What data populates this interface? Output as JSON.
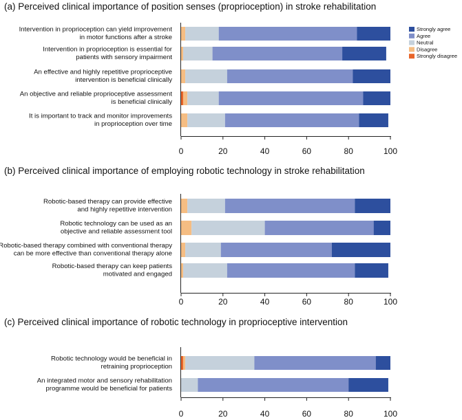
{
  "colors": {
    "Strongly agree": "#2d4f9e",
    "Agree": "#7f8fc9",
    "Neutral": "#c5d1dc",
    "Disagree": "#f5bd83",
    "Strongly disagree": "#e8652a"
  },
  "chart_data": [
    {
      "type": "bar",
      "orientation": "horizontal",
      "stacked": true,
      "title": "(a)  Perceived clinical importance of position senses (proprioception) in stroke rehabilitation",
      "xlim": [
        0,
        100
      ],
      "xticks": [
        0,
        20,
        40,
        60,
        80,
        100
      ],
      "legend": {
        "position": "top-right",
        "order": [
          "Strongly agree",
          "Agree",
          "Neutral",
          "Disagree",
          "Strongly disagree"
        ]
      },
      "categories": [
        [
          "Intervention in proprioception can yield improvement",
          "in motor functions after a stroke"
        ],
        [
          "Intervention in proprioception is essential for",
          "patients with sensory impairment"
        ],
        [
          "An effective and highly repetitive proprioceptive",
          "intervention is beneficial clinically"
        ],
        [
          "An objective and reliable proprioceptive assessment",
          "is beneficial clinically"
        ],
        [
          "It is important to track and monitor improvements",
          "in proprioception over time"
        ]
      ],
      "series": [
        {
          "name": "Strongly disagree",
          "values": [
            0,
            0,
            0,
            1,
            0
          ]
        },
        {
          "name": "Disagree",
          "values": [
            2,
            1,
            2,
            2,
            3
          ]
        },
        {
          "name": "Neutral",
          "values": [
            16,
            14,
            20,
            15,
            18
          ]
        },
        {
          "name": "Agree",
          "values": [
            66,
            62,
            60,
            69,
            64
          ]
        },
        {
          "name": "Strongly agree",
          "values": [
            16,
            21,
            18,
            13,
            14
          ]
        }
      ]
    },
    {
      "type": "bar",
      "orientation": "horizontal",
      "stacked": true,
      "title": "(b)  Perceived clinical importance of employing robotic technology in stroke rehabilitation",
      "xlim": [
        0,
        100
      ],
      "xticks": [
        0,
        20,
        40,
        60,
        80,
        100
      ],
      "categories": [
        [
          "Robotic-based therapy can provide effective",
          "and highly repetitive intervention"
        ],
        [
          "Robotic technology can be used as an",
          "objective and reliable assessment tool"
        ],
        [
          "Robotic-based therapy combined with conventional therapy",
          "can be more effective than conventional therapy alone"
        ],
        [
          "Robotic-based therapy can keep patients",
          "motivated and engaged"
        ]
      ],
      "series": [
        {
          "name": "Strongly disagree",
          "values": [
            0,
            0,
            0,
            0
          ]
        },
        {
          "name": "Disagree",
          "values": [
            3,
            5,
            2,
            1
          ]
        },
        {
          "name": "Neutral",
          "values": [
            18,
            35,
            17,
            21
          ]
        },
        {
          "name": "Agree",
          "values": [
            62,
            52,
            53,
            61
          ]
        },
        {
          "name": "Strongly agree",
          "values": [
            17,
            8,
            28,
            16
          ]
        }
      ]
    },
    {
      "type": "bar",
      "orientation": "horizontal",
      "stacked": true,
      "title": "(c)  Perceived clinical importance of robotic technology in proprioceptive intervention",
      "xlim": [
        0,
        100
      ],
      "xticks": [
        0,
        20,
        40,
        60,
        80,
        100
      ],
      "categories": [
        [
          "Robotic technology would be beneficial in",
          "retraining proprioception"
        ],
        [
          "An integrated motor and sensory rehabilitation",
          "programme would be beneficial for patients"
        ]
      ],
      "series": [
        {
          "name": "Strongly disagree",
          "values": [
            1,
            0
          ]
        },
        {
          "name": "Disagree",
          "values": [
            1,
            0
          ]
        },
        {
          "name": "Neutral",
          "values": [
            33,
            8
          ]
        },
        {
          "name": "Agree",
          "values": [
            58,
            72
          ]
        },
        {
          "name": "Strongly agree",
          "values": [
            7,
            19
          ]
        }
      ]
    }
  ]
}
